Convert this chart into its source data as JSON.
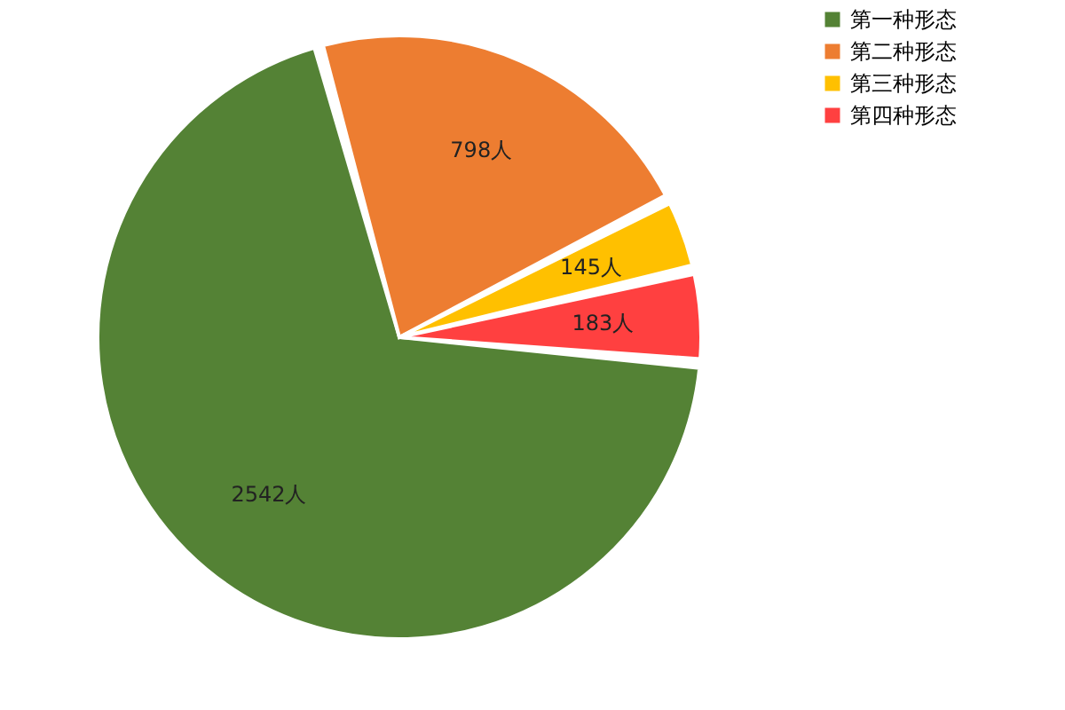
{
  "chart_data": {
    "type": "pie",
    "categories": [
      "第一种形态",
      "第二种形态",
      "第三种形态",
      "第四种形态"
    ],
    "values": [
      2542,
      798,
      145,
      183
    ],
    "colors": [
      "#548235",
      "#ed7d31",
      "#ffc000",
      "#ff4040"
    ],
    "value_labels": [
      "2542人",
      "798人",
      "145人",
      "183人"
    ],
    "legend": "right"
  }
}
